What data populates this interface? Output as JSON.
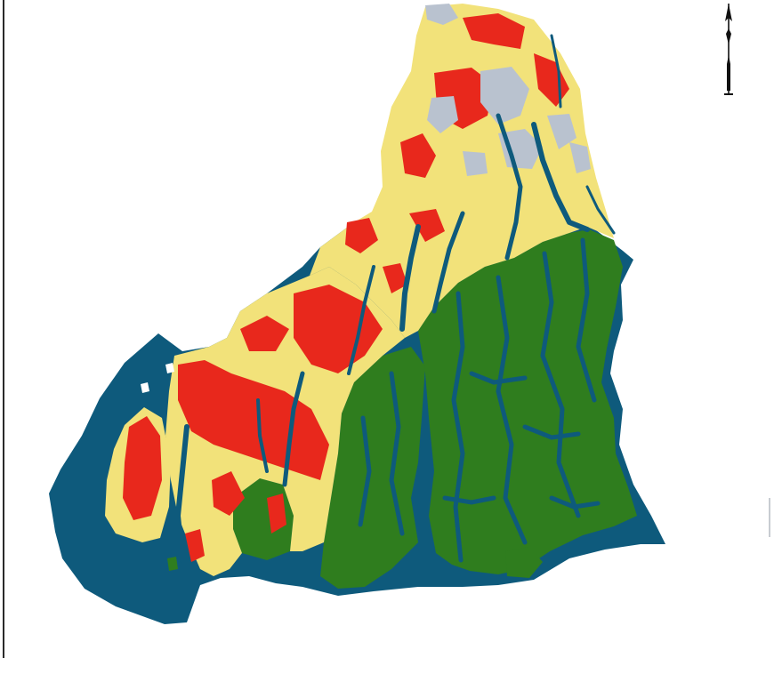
{
  "map": {
    "colors": {
      "water": "#0e5a7c",
      "mangrove_forest": "#2f7d1e",
      "cropland": "#f2e27a",
      "settlement": "#e8281c",
      "bare_land": "#b9c2cf",
      "background": "#ffffff"
    },
    "icons": {
      "north_arrow": "north-arrow-icon"
    }
  }
}
